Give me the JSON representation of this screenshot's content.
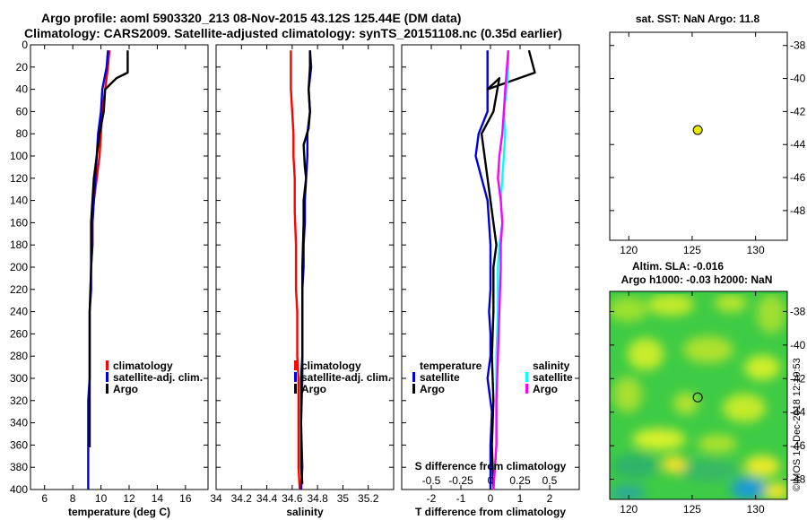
{
  "header": {
    "title_line1": "Argo profile: aoml 5903320_213 08-Nov-2015 43.12S 125.44E (DM data)",
    "title_line2": "Climatology: CARS2009. Satellite-adjusted climatology: synTS_20151108.nc (0.35d earlier)"
  },
  "credit": "©IMOS 14-Dec-2018 12:19:53",
  "colors": {
    "climatology": "#ff0000",
    "satellite": "#0000dd",
    "argo": "#000000",
    "salinity_satellite": "#00ffff",
    "salinity_argo": "#ff00ff",
    "marker": "#e8e800"
  },
  "chart_data": [
    {
      "id": "temperature",
      "type": "line",
      "xlabel": "temperature (deg C)",
      "ylabel": "depth",
      "xlim": [
        5,
        17.6
      ],
      "ylim": [
        400,
        0
      ],
      "xticks": [
        "6",
        "8",
        "10",
        "12",
        "14",
        "16"
      ],
      "xtick_values": [
        6,
        8,
        10,
        12,
        14,
        16
      ],
      "yticks": [
        "0",
        "20",
        "40",
        "60",
        "80",
        "100",
        "120",
        "140",
        "160",
        "180",
        "200",
        "220",
        "240",
        "260",
        "280",
        "300",
        "320",
        "340",
        "360",
        "380",
        "400"
      ],
      "ytick_values": [
        0,
        20,
        40,
        60,
        80,
        100,
        120,
        140,
        160,
        180,
        200,
        220,
        240,
        260,
        280,
        300,
        320,
        340,
        360,
        380,
        400
      ],
      "legend": [
        "climatology",
        "satellite-adj. clim.",
        "Argo"
      ],
      "series": [
        {
          "name": "climatology",
          "color": "#ff0000",
          "x": [
            10.6,
            10.5,
            10.3,
            10.1,
            10.0,
            9.9,
            9.7,
            9.5,
            9.4,
            9.4,
            9.3
          ],
          "y": [
            5,
            20,
            40,
            60,
            80,
            100,
            120,
            140,
            160,
            180,
            200
          ]
        },
        {
          "name": "satellite-adj. clim.",
          "color": "#0000dd",
          "x": [
            10.5,
            10.4,
            10.1,
            10.0,
            9.8,
            9.7,
            9.6,
            9.5,
            9.4,
            9.4,
            9.3,
            9.3,
            9.2,
            9.2,
            9.2,
            9.2,
            9.1,
            9.1,
            9.1
          ],
          "y": [
            5,
            20,
            40,
            60,
            80,
            100,
            120,
            140,
            160,
            180,
            200,
            220,
            240,
            260,
            280,
            300,
            320,
            360,
            400
          ]
        },
        {
          "name": "Argo",
          "color": "#000000",
          "x": [
            11.9,
            11.9,
            11.1,
            10.3,
            10.2,
            9.9,
            9.7,
            9.5,
            9.4,
            9.3,
            9.3,
            9.2,
            9.2,
            9.2,
            9.2
          ],
          "y": [
            5,
            25,
            30,
            40,
            60,
            80,
            100,
            120,
            140,
            160,
            200,
            240,
            280,
            320,
            362
          ]
        }
      ]
    },
    {
      "id": "salinity",
      "type": "line",
      "xlabel": "salinity",
      "xlim": [
        34,
        35.4
      ],
      "ylim": [
        400,
        0
      ],
      "xticks": [
        "34",
        "34.2",
        "34.4",
        "34.6",
        "34.8",
        "35",
        "35.2"
      ],
      "xtick_values": [
        34,
        34.2,
        34.4,
        34.6,
        34.8,
        35.0,
        35.2
      ],
      "legend": [
        "climatology",
        "satellite-adj. clim.",
        "Argo"
      ],
      "series": [
        {
          "name": "climatology",
          "color": "#ff0000",
          "x": [
            34.59,
            34.59,
            34.59,
            34.6,
            34.61,
            34.61,
            34.62,
            34.62,
            34.63,
            34.63,
            34.63,
            34.64,
            34.64,
            34.64,
            34.65,
            34.65,
            34.65,
            34.66
          ],
          "y": [
            5,
            20,
            40,
            60,
            80,
            100,
            120,
            150,
            180,
            200,
            220,
            240,
            260,
            280,
            300,
            340,
            380,
            400
          ]
        },
        {
          "name": "satellite-adj. clim.",
          "color": "#0000dd",
          "x": [
            34.74,
            34.75,
            34.73,
            34.74,
            34.72,
            34.72,
            34.71,
            34.7,
            34.7,
            34.69,
            34.69,
            34.68,
            34.68,
            34.68,
            34.68,
            34.67,
            34.68,
            34.67
          ],
          "y": [
            5,
            20,
            40,
            60,
            80,
            100,
            120,
            140,
            160,
            180,
            200,
            220,
            240,
            260,
            300,
            340,
            380,
            400
          ]
        },
        {
          "name": "Argo",
          "color": "#000000",
          "x": [
            34.74,
            34.74,
            34.73,
            34.74,
            34.73,
            34.69,
            34.7,
            34.71,
            34.69,
            34.69,
            34.68,
            34.68,
            34.68,
            34.67,
            34.67,
            34.67,
            34.68
          ],
          "y": [
            5,
            20,
            40,
            60,
            75,
            90,
            110,
            120,
            140,
            160,
            200,
            240,
            280,
            300,
            340,
            380,
            395
          ]
        }
      ]
    },
    {
      "id": "difference",
      "type": "line",
      "xlabel": "T difference from climatology",
      "xlabel_top": "S difference from climatology",
      "xlim": [
        -3,
        3
      ],
      "ylim": [
        400,
        0
      ],
      "xticks": [
        "-2",
        "-1",
        "0",
        "1",
        "2"
      ],
      "xtick_values": [
        -2,
        -1,
        0,
        1,
        2
      ],
      "xticks_s": [
        "-0.5",
        "-0.25",
        "0",
        "0.25",
        "0.5"
      ],
      "xtick_s_values": [
        -2,
        -1,
        0,
        1,
        2
      ],
      "legend_titles": [
        "temperature",
        "salinity"
      ],
      "legend": [
        "satellite",
        "Argo",
        "satellite",
        "Argo"
      ],
      "series": [
        {
          "name": "T satellite",
          "color": "#0000dd",
          "x": [
            -0.1,
            -0.1,
            -0.1,
            -0.1,
            -0.4,
            -0.5,
            -0.3,
            -0.1,
            -0.05,
            0,
            0,
            0,
            -0.05,
            0,
            0,
            -0.1,
            0.05,
            0,
            0
          ],
          "y": [
            5,
            20,
            40,
            60,
            80,
            100,
            120,
            140,
            160,
            180,
            200,
            220,
            240,
            260,
            280,
            300,
            330,
            360,
            400
          ]
        },
        {
          "name": "T Argo",
          "color": "#000000",
          "x": [
            1.3,
            1.5,
            -0.1,
            0.3,
            0.1,
            -0.3,
            -0.2,
            -0.1,
            0,
            0.1,
            0.2,
            0.1,
            0.1,
            0.05,
            0.1,
            0.05,
            0.1
          ],
          "y": [
            5,
            25,
            40,
            30,
            60,
            80,
            100,
            120,
            140,
            160,
            180,
            200,
            240,
            280,
            320,
            360,
            400
          ]
        },
        {
          "name": "S satellite",
          "color": "#00ffff",
          "x": [
            0.6,
            0.6,
            0.55,
            0.45,
            0.5,
            0.45,
            0.4,
            0.35,
            0.4,
            0.3,
            0.25,
            0.25,
            0.2,
            0.2,
            0.2,
            0.15,
            0.1
          ],
          "y": [
            5,
            20,
            40,
            60,
            80,
            100,
            120,
            140,
            160,
            180,
            200,
            240,
            280,
            320,
            360,
            380,
            400
          ]
        },
        {
          "name": "S Argo",
          "color": "#ff00ff",
          "x": [
            0.6,
            0.5,
            0.45,
            0.4,
            0.3,
            0.25,
            0.35,
            0.4,
            0.35,
            0.35,
            0.3,
            0.25,
            0.2,
            0.2,
            0.15,
            0.1
          ],
          "y": [
            5,
            40,
            60,
            80,
            100,
            120,
            140,
            160,
            180,
            200,
            240,
            280,
            320,
            360,
            380,
            400
          ]
        }
      ]
    },
    {
      "id": "sst_map",
      "type": "scatter",
      "title": "sat. SST: NaN Argo: 11.8",
      "xlim": [
        118.5,
        132.5
      ],
      "ylim": [
        -49.8,
        -37.2
      ],
      "xticks": [
        "120",
        "125",
        "130"
      ],
      "xtick_values": [
        120,
        125,
        130
      ],
      "yticks": [
        "-38",
        "-40",
        "-42",
        "-44",
        "-46",
        "-48"
      ],
      "ytick_values": [
        -38,
        -40,
        -42,
        -44,
        -46,
        -48
      ],
      "points": [
        {
          "lon": 125.44,
          "lat": -43.12
        }
      ]
    },
    {
      "id": "sla_map",
      "type": "heatmap",
      "title_line1": "Altim. SLA: -0.016",
      "title_line2": "Argo h1000: -0.03 h2000: NaN",
      "xlim": [
        118.5,
        132.5
      ],
      "ylim": [
        -49.2,
        -36.8
      ],
      "xticks": [
        "120",
        "125",
        "130"
      ],
      "xtick_values": [
        120,
        125,
        130
      ],
      "yticks": [
        "-38",
        "-40",
        "-42",
        "-44",
        "-46",
        "-48"
      ],
      "ytick_values": [
        -38,
        -40,
        -42,
        -44,
        -46,
        -48
      ],
      "points": [
        {
          "lon": 125.44,
          "lat": -43.12
        }
      ]
    }
  ]
}
